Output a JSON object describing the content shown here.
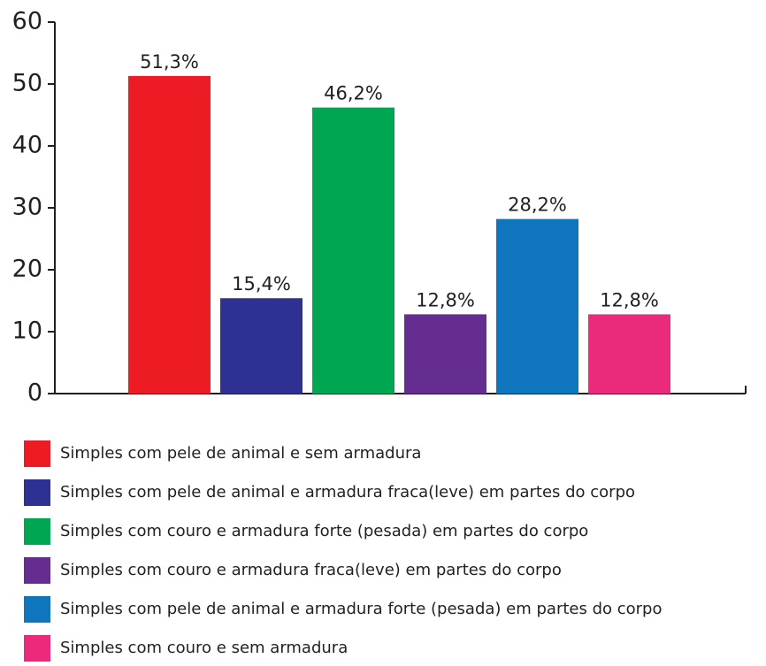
{
  "chart_data": {
    "type": "bar",
    "categories": [
      "Simples com pele de animal e sem armadura",
      "Simples com pele de animal e armadura fraca(leve) em partes do corpo",
      "Simples com couro e armadura forte (pesada) em partes do corpo",
      "Simples com couro e armadura fraca(leve) em partes do corpo",
      "Simples com pele de animal e armadura forte (pesada) em partes do corpo",
      "Simples com couro e sem armadura"
    ],
    "values": [
      51.3,
      15.4,
      46.2,
      12.8,
      28.2,
      12.8
    ],
    "value_labels": [
      "51,3%",
      "15,4%",
      "46,2%",
      "12,8%",
      "28,2%",
      "12,8%"
    ],
    "colors": [
      "#ed1c24",
      "#2e3192",
      "#00a651",
      "#662d91",
      "#0f75bc",
      "#ec2a7b"
    ],
    "ylim": [
      0,
      60
    ],
    "yticks": [
      0,
      10,
      20,
      30,
      40,
      50,
      60
    ],
    "grid": false
  }
}
